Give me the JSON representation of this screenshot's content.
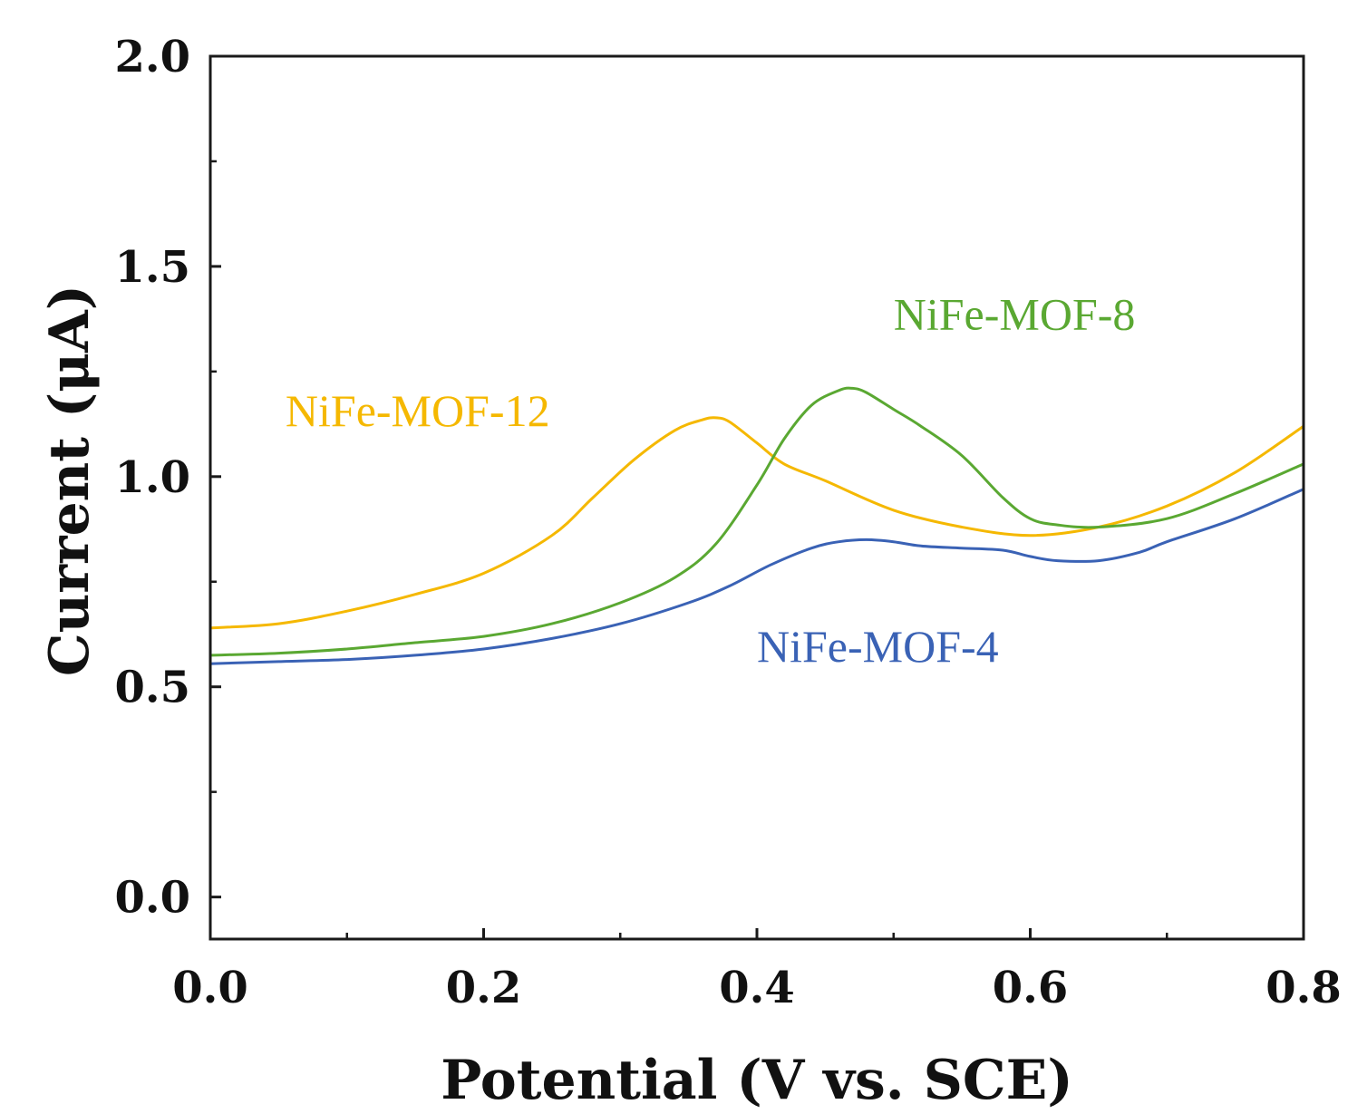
{
  "chart_data": {
    "type": "line",
    "title": "",
    "xlabel": "Potential (V vs. SCE)",
    "ylabel": "Current (μA)",
    "xlim": [
      0.0,
      0.8
    ],
    "ylim": [
      -0.1,
      2.0
    ],
    "xticks": [
      0.0,
      0.2,
      0.4,
      0.6,
      0.8
    ],
    "xtick_labels": [
      "0.0",
      "0.2",
      "0.4",
      "0.6",
      "0.8"
    ],
    "yticks": [
      0.0,
      0.5,
      1.0,
      1.5,
      2.0
    ],
    "ytick_labels": [
      "0.0",
      "0.5",
      "1.0",
      "1.5",
      "2.0"
    ],
    "grid": false,
    "series": [
      {
        "name": "NiFe-MOF-12",
        "color": "#f5b800",
        "x": [
          0.0,
          0.05,
          0.1,
          0.15,
          0.2,
          0.25,
          0.28,
          0.31,
          0.34,
          0.36,
          0.37,
          0.38,
          0.4,
          0.42,
          0.45,
          0.5,
          0.55,
          0.6,
          0.65,
          0.7,
          0.75,
          0.8
        ],
        "y": [
          0.64,
          0.65,
          0.68,
          0.72,
          0.77,
          0.86,
          0.95,
          1.04,
          1.11,
          1.135,
          1.14,
          1.13,
          1.08,
          1.03,
          0.99,
          0.92,
          0.88,
          0.86,
          0.88,
          0.93,
          1.01,
          1.12
        ]
      },
      {
        "name": "NiFe-MOF-8",
        "color": "#5aa832",
        "x": [
          0.0,
          0.05,
          0.1,
          0.15,
          0.2,
          0.25,
          0.3,
          0.34,
          0.37,
          0.4,
          0.42,
          0.44,
          0.46,
          0.47,
          0.48,
          0.5,
          0.52,
          0.55,
          0.58,
          0.6,
          0.62,
          0.65,
          0.7,
          0.75,
          0.8
        ],
        "y": [
          0.575,
          0.58,
          0.59,
          0.605,
          0.62,
          0.65,
          0.7,
          0.76,
          0.84,
          0.98,
          1.09,
          1.17,
          1.205,
          1.21,
          1.2,
          1.16,
          1.12,
          1.05,
          0.95,
          0.9,
          0.885,
          0.88,
          0.9,
          0.96,
          1.03
        ]
      },
      {
        "name": "NiFe-MOF-4",
        "color": "#3a62b5",
        "x": [
          0.0,
          0.05,
          0.1,
          0.15,
          0.2,
          0.25,
          0.3,
          0.35,
          0.38,
          0.41,
          0.44,
          0.46,
          0.48,
          0.5,
          0.52,
          0.55,
          0.58,
          0.6,
          0.62,
          0.65,
          0.68,
          0.7,
          0.75,
          0.8
        ],
        "y": [
          0.555,
          0.56,
          0.565,
          0.575,
          0.59,
          0.615,
          0.65,
          0.7,
          0.74,
          0.79,
          0.83,
          0.845,
          0.85,
          0.845,
          0.835,
          0.83,
          0.825,
          0.81,
          0.8,
          0.8,
          0.82,
          0.845,
          0.9,
          0.97
        ]
      }
    ],
    "annotations": [
      {
        "text": "NiFe-MOF-12",
        "series": "NiFe-MOF-12",
        "x": 0.055,
        "y": 1.12
      },
      {
        "text": "NiFe-MOF-8",
        "series": "NiFe-MOF-8",
        "x": 0.5,
        "y": 1.35
      },
      {
        "text": "NiFe-MOF-4",
        "series": "NiFe-MOF-4",
        "x": 0.4,
        "y": 0.56
      }
    ]
  }
}
